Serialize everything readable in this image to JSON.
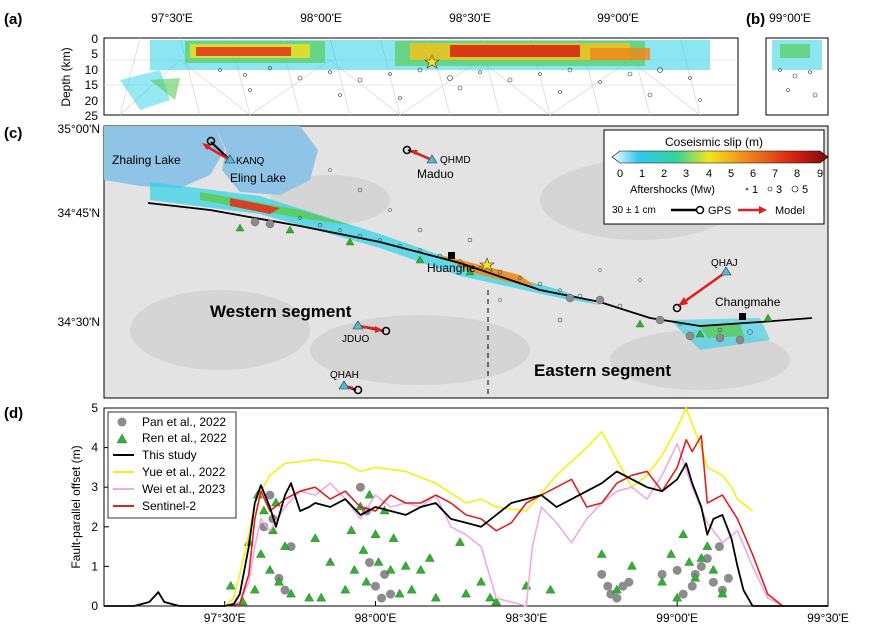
{
  "panels": {
    "a": "(a)",
    "b": "(b)",
    "c": "(c)",
    "d": "(d)"
  },
  "panel_a": {
    "ylabel": "Depth (km)",
    "yticks": [
      "0",
      "5",
      "10",
      "15",
      "20",
      "25"
    ],
    "xticks": [
      "97°30'E",
      "98°00'E",
      "98°30'E",
      "99°00'E"
    ]
  },
  "panel_b": {
    "xticks": [
      "99°00'E"
    ]
  },
  "map": {
    "lat_ticks": [
      "35°00'N",
      "34°45'N",
      "34°30'N"
    ],
    "place_labels": {
      "zhaling": "Zhaling Lake",
      "eling": "Eling Lake",
      "maduo": "Maduo",
      "huanghe": "Huanghe",
      "changmahe": "Changmahe",
      "western": "Western segment",
      "eastern": "Eastern segment"
    },
    "gps_stations": {
      "kanq": "KANQ",
      "qhmd": "QHMD",
      "qhaj": "QHAJ",
      "jduo": "JDUO",
      "qhah": "QHAH"
    },
    "legend": {
      "title": "Coseismic slip (m)",
      "scale_ticks": [
        "0",
        "1",
        "2",
        "3",
        "4",
        "5",
        "6",
        "7",
        "8",
        "9"
      ],
      "aftershocks_label": "Aftershocks (Mw)",
      "aftershock_sizes": [
        "1",
        "3",
        "5"
      ],
      "vector_scale": "30 ± 1 cm",
      "gps_label": "GPS",
      "model_label": "Model"
    }
  },
  "colors": {
    "this_study": "#000000",
    "yue": "#f2f20f",
    "wei": "#f0a8e6",
    "sentinel": "#e01f1f",
    "pan": "#8c8c8c",
    "ren": "#33b033",
    "lake": "#8fc4e6",
    "model_arrow": "#e01f1f"
  },
  "chart_data": {
    "type": "line",
    "xlabel": "",
    "ylabel": "Fault-parallel offset (m)",
    "ylim": [
      0,
      5
    ],
    "xlim": [
      97.1,
      99.5
    ],
    "xticks": [
      {
        "value": 97.5,
        "label": "97°30'E"
      },
      {
        "value": 98.0,
        "label": "98°00'E"
      },
      {
        "value": 98.5,
        "label": "98°30'E"
      },
      {
        "value": 99.0,
        "label": "99°00'E"
      },
      {
        "value": 99.5,
        "label": "99°30'E"
      }
    ],
    "yticks": [
      0,
      1,
      2,
      3,
      4,
      5
    ],
    "grid": false,
    "legend_position": "top-left",
    "series": [
      {
        "name": "This study",
        "kind": "line",
        "x": [
          97.1,
          97.2,
          97.25,
          97.28,
          97.3,
          97.35,
          97.4,
          97.45,
          97.5,
          97.53,
          97.55,
          97.58,
          97.6,
          97.62,
          97.65,
          97.67,
          97.7,
          97.72,
          97.75,
          97.78,
          97.8,
          97.85,
          97.9,
          97.95,
          98.0,
          98.05,
          98.1,
          98.15,
          98.2,
          98.25,
          98.3,
          98.35,
          98.4,
          98.45,
          98.5,
          98.55,
          98.6,
          98.65,
          98.7,
          98.75,
          98.8,
          98.85,
          98.9,
          98.95,
          99.0,
          99.03,
          99.05,
          99.08,
          99.1,
          99.12,
          99.15,
          99.18,
          99.2,
          99.22,
          99.25,
          99.3,
          99.4,
          99.5
        ],
        "y": [
          0,
          0,
          0.1,
          0.35,
          0.1,
          0,
          0,
          0,
          0,
          0.05,
          0.3,
          1.5,
          2.6,
          3.05,
          2.5,
          2.0,
          2.8,
          3.1,
          2.4,
          2.5,
          2.6,
          2.5,
          2.7,
          2.3,
          2.5,
          2.4,
          2.3,
          2.5,
          2.6,
          2.2,
          2.1,
          2.0,
          2.3,
          2.6,
          2.7,
          2.8,
          2.5,
          2.7,
          2.9,
          3.1,
          3.4,
          3.2,
          3.0,
          2.9,
          3.2,
          3.6,
          3.1,
          2.5,
          1.8,
          2.2,
          2.3,
          1.7,
          1.0,
          0.4,
          0,
          0,
          0,
          0
        ]
      },
      {
        "name": "Yue et al., 2022",
        "kind": "line",
        "x": [
          97.5,
          97.53,
          97.55,
          97.58,
          97.6,
          97.65,
          97.7,
          97.8,
          97.9,
          97.95,
          98.0,
          98.1,
          98.2,
          98.3,
          98.35,
          98.4,
          98.5,
          98.6,
          98.7,
          98.75,
          98.8,
          98.85,
          98.9,
          98.95,
          99.0,
          99.03,
          99.05,
          99.08,
          99.1,
          99.15,
          99.18,
          99.2,
          99.25
        ],
        "y": [
          0,
          0.2,
          0.8,
          1.8,
          2.6,
          3.3,
          3.6,
          3.7,
          3.6,
          3.4,
          3.5,
          3.4,
          3.1,
          2.6,
          2.7,
          2.5,
          2.4,
          3.3,
          4.0,
          4.4,
          3.7,
          3.0,
          3.3,
          3.8,
          4.5,
          5.0,
          4.6,
          4.0,
          3.5,
          3.3,
          3.0,
          2.7,
          2.4
        ]
      },
      {
        "name": "Wei et al., 2023",
        "kind": "line",
        "x": [
          97.5,
          97.55,
          97.58,
          97.6,
          97.62,
          97.65,
          97.7,
          97.75,
          97.8,
          97.85,
          97.9,
          97.95,
          98.0,
          98.05,
          98.1,
          98.15,
          98.2,
          98.25,
          98.3,
          98.35,
          98.4,
          98.45,
          98.5,
          98.52,
          98.55,
          98.6,
          98.65,
          98.7,
          98.75,
          98.8,
          98.85,
          98.9,
          98.95,
          99.0,
          99.05,
          99.1,
          99.15,
          99.2,
          99.25,
          99.3,
          99.35
        ],
        "y": [
          0,
          0.1,
          0.6,
          1.5,
          2.2,
          1.9,
          2.5,
          2.9,
          2.8,
          3.1,
          2.7,
          2.2,
          2.8,
          2.5,
          2.6,
          2.5,
          2.8,
          2.0,
          1.8,
          1.5,
          0.2,
          0.1,
          0,
          1.5,
          2.5,
          2.1,
          1.6,
          2.2,
          2.6,
          2.9,
          3.0,
          2.7,
          3.3,
          4.1,
          3.0,
          2.1,
          1.6,
          1.9,
          1.0,
          0.2,
          0
        ]
      },
      {
        "name": "Sentinel-2",
        "kind": "line",
        "x": [
          97.5,
          97.55,
          97.58,
          97.6,
          97.62,
          97.65,
          97.7,
          97.75,
          97.8,
          97.85,
          97.9,
          97.95,
          98.0,
          98.05,
          98.1,
          98.15,
          98.2,
          98.25,
          98.3,
          98.35,
          98.4,
          98.45,
          98.5,
          98.55,
          98.6,
          98.65,
          98.7,
          98.75,
          98.8,
          98.85,
          98.9,
          98.95,
          99.0,
          99.03,
          99.05,
          99.08,
          99.1,
          99.15,
          99.2,
          99.25,
          99.3,
          99.35
        ],
        "y": [
          0,
          0.05,
          0.8,
          2.2,
          2.9,
          2.4,
          2.7,
          2.9,
          3.0,
          2.7,
          2.9,
          2.5,
          2.4,
          2.8,
          2.6,
          2.6,
          2.8,
          2.6,
          2.3,
          2.2,
          1.9,
          2.1,
          2.6,
          2.8,
          3.0,
          3.2,
          2.5,
          2.6,
          3.1,
          3.3,
          3.4,
          2.9,
          3.5,
          4.2,
          3.9,
          4.3,
          2.6,
          2.8,
          2.2,
          1.3,
          0.3,
          0
        ]
      },
      {
        "name": "Pan et al., 2022",
        "kind": "scatter",
        "x": [
          97.63,
          97.65,
          97.66,
          97.68,
          97.7,
          97.72,
          97.95,
          97.97,
          97.98,
          98.0,
          98.02,
          98.03,
          98.05,
          98.75,
          98.77,
          98.78,
          98.8,
          98.82,
          98.84,
          98.95,
          99.0,
          99.02,
          99.05,
          99.06,
          99.08,
          99.1,
          99.12,
          99.14,
          99.15,
          99.17
        ],
        "y": [
          2.0,
          2.8,
          2.2,
          0.7,
          0.4,
          1.5,
          3.0,
          2.4,
          1.1,
          0.5,
          0.2,
          0.8,
          0.3,
          0.8,
          0.5,
          0.3,
          0.2,
          0.5,
          0.6,
          0.8,
          0.9,
          0.3,
          0.5,
          0.8,
          1.0,
          1.2,
          0.6,
          1.5,
          0.4,
          0.7
        ]
      },
      {
        "name": "Ren et al., 2022",
        "kind": "scatter",
        "x": [
          97.52,
          97.56,
          97.58,
          97.6,
          97.61,
          97.62,
          97.63,
          97.65,
          97.66,
          97.67,
          97.68,
          97.7,
          97.72,
          97.78,
          97.8,
          97.82,
          97.85,
          97.9,
          97.92,
          97.93,
          97.95,
          97.96,
          97.97,
          97.98,
          98.0,
          98.01,
          98.03,
          98.05,
          98.06,
          98.08,
          98.1,
          98.12,
          98.15,
          98.18,
          98.2,
          98.28,
          98.3,
          98.35,
          98.38,
          98.4,
          98.5,
          98.58,
          98.75,
          98.8,
          98.85,
          98.95,
          98.98,
          99.0,
          99.02,
          99.04,
          99.06,
          99.08,
          99.1,
          99.12,
          99.15
        ],
        "y": [
          0.5,
          0.1,
          1.6,
          0.4,
          2.8,
          1.3,
          2.4,
          0.9,
          1.9,
          2.6,
          0.6,
          1.5,
          0.3,
          0.2,
          1.7,
          0.2,
          1.1,
          0.4,
          1.9,
          0.9,
          2.5,
          1.4,
          0.6,
          2.8,
          1.8,
          1.1,
          2.4,
          0.9,
          1.7,
          0.3,
          1.0,
          0.4,
          0.9,
          1.2,
          0.2,
          1.6,
          0.3,
          0.6,
          0.2,
          0.1,
          0.5,
          0.4,
          1.3,
          0.4,
          1.0,
          0.6,
          1.3,
          0.2,
          1.8,
          1.1,
          0.7,
          1.2,
          1.5,
          0.9,
          0.3
        ]
      }
    ]
  }
}
